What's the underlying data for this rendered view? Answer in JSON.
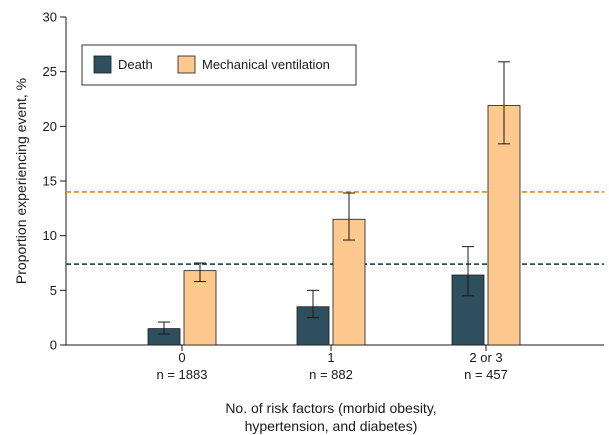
{
  "chart_data": {
    "type": "bar",
    "categories": [
      "0",
      "1",
      "2 or 3"
    ],
    "category_counts": [
      "n = 1883",
      "n = 882",
      "n = 457"
    ],
    "series": [
      {
        "name": "Death",
        "color": "#2e4f5e",
        "values": [
          1.5,
          3.5,
          6.4
        ],
        "ci_low": [
          1.0,
          2.5,
          4.5
        ],
        "ci_high": [
          2.1,
          5.0,
          9.0
        ]
      },
      {
        "name": "Mechanical ventilation",
        "color": "#fdc98f",
        "values": [
          6.8,
          11.5,
          21.9
        ],
        "ci_low": [
          5.8,
          9.6,
          18.4
        ],
        "ci_high": [
          7.5,
          13.9,
          25.9
        ]
      }
    ],
    "reference_lines": [
      {
        "series": "Death",
        "value": 7.4,
        "color": "#2e4f5e"
      },
      {
        "series": "Mechanical ventilation",
        "value": 14.0,
        "color": "#e8962a"
      }
    ],
    "ylabel": "Proportion experiencing event, %",
    "xlabel": [
      "No. of risk factors (morbid obesity,",
      "hypertension, and diabetes)"
    ],
    "ylim": [
      0,
      30
    ],
    "yticks": [
      "0",
      "5",
      "10",
      "15",
      "20",
      "25",
      "30"
    ],
    "legend_position": "top-left",
    "grid": false
  }
}
